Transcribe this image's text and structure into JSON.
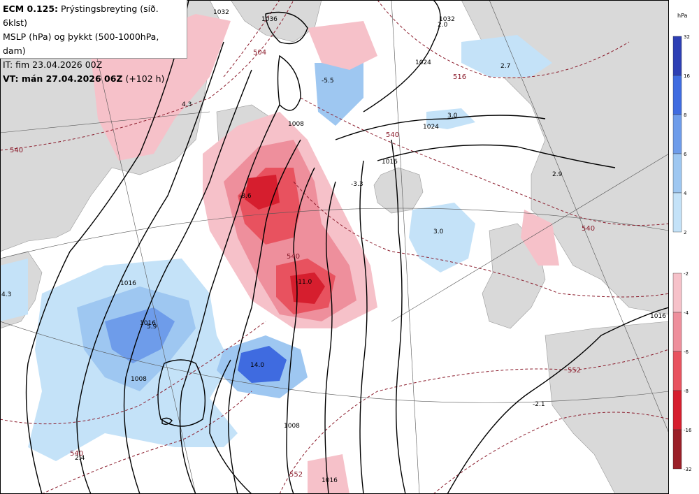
{
  "header": {
    "line1_bold": "ECM 0.125:",
    "line1_rest": " Prýstingsbreyting (síð. 6klst)",
    "line2": "MSLP (hPa) og þykkt (500-1000hPa, dam)",
    "line3": "IT: fim 23.04.2026 00Z",
    "line4": "VT: mán 27.04.2026 06Z",
    "line4_rest": " (+102 h)"
  },
  "legend": {
    "unit": "hPa",
    "positive": {
      "ticks": [
        "32",
        "16",
        "8",
        "6",
        "4",
        "2"
      ],
      "colors": [
        "#2d3fb4",
        "#3f6be0",
        "#6e9cea",
        "#9ec7f1",
        "#c4e2f8"
      ]
    },
    "negative": {
      "ticks": [
        "-2",
        "-4",
        "-6",
        "-8",
        "-16",
        "-32"
      ],
      "colors": [
        "#f6c1c9",
        "#ee8f9c",
        "#e8525f",
        "#d61e2e",
        "#9a1f28"
      ]
    }
  },
  "map_labels": {
    "isobars": [
      "1016",
      "1024",
      "1016",
      "1016",
      "1008",
      "1008",
      "1008",
      "1016",
      "1024",
      "1016",
      "1032",
      "1036",
      "1032"
    ],
    "thickness": [
      "540",
      "504",
      "516",
      "540",
      "540",
      "552",
      "552",
      "540",
      "540"
    ],
    "tendency": [
      "2.0",
      "2.7",
      "3.0",
      "2.9",
      "3.0",
      "-3.3",
      "-11.0",
      "14.0",
      "5.9",
      "4.3",
      "2.4",
      "-2.1",
      "4.3",
      "-5.5",
      "-8.6"
    ]
  },
  "colors": {
    "land": "#d9d9d9",
    "sea": "#ffffff",
    "isobar": "#000000",
    "thickness": "#8b1c2c"
  }
}
